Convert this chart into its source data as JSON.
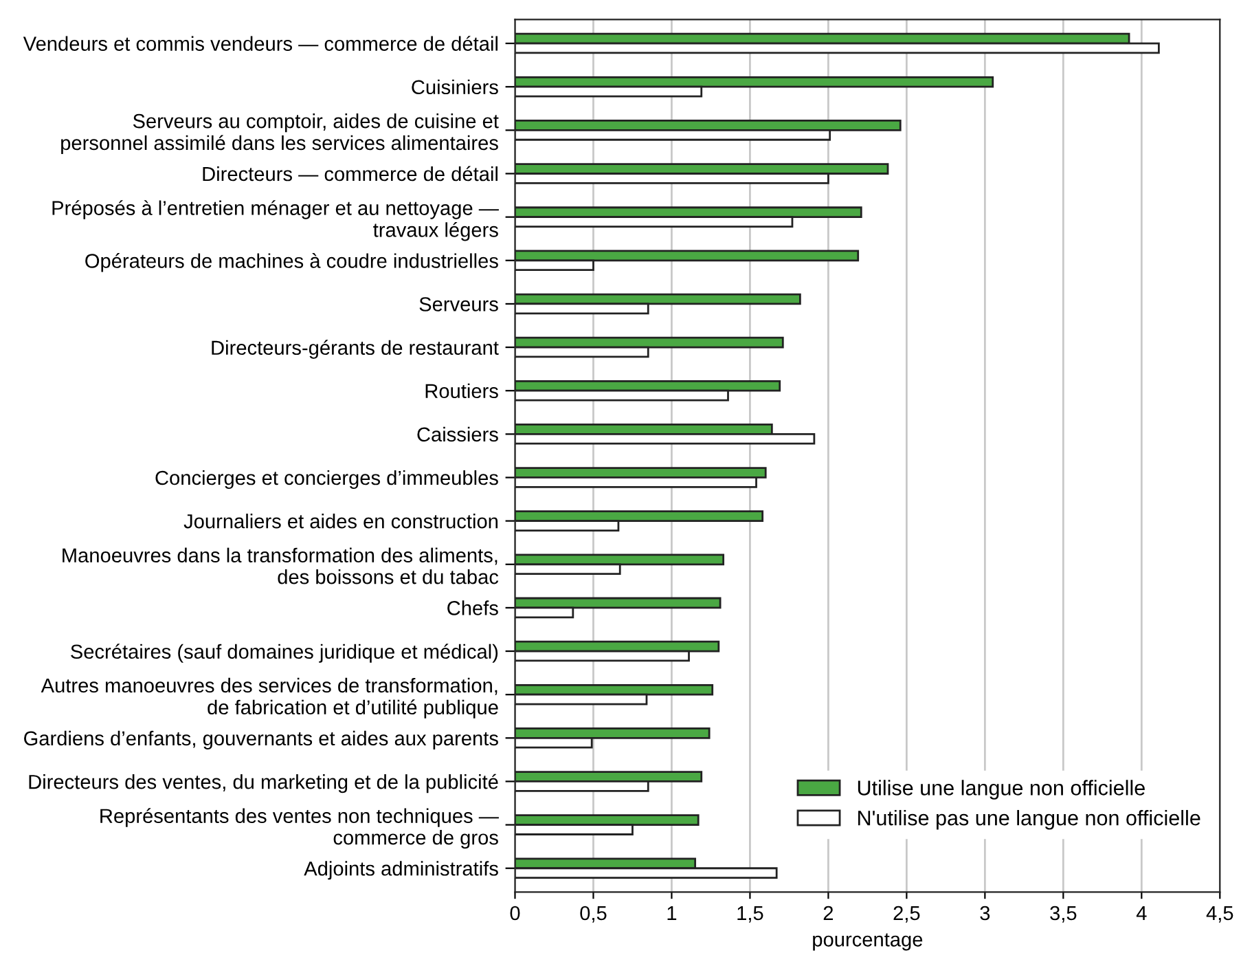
{
  "chart_data": {
    "type": "bar",
    "orientation": "horizontal",
    "xlabel": "pourcentage",
    "categories": [
      "Vendeurs et commis vendeurs — commerce de détail",
      "Cuisiniers",
      "Serveurs au comptoir, aides de cuisine et\npersonnel assimilé dans les services alimentaires",
      "Directeurs — commerce de détail",
      "Préposés à l’entretien ménager et au nettoyage —\ntravaux légers",
      "Opérateurs de machines à coudre industrielles",
      "Serveurs",
      "Directeurs-gérants de restaurant",
      "Routiers",
      "Caissiers",
      "Concierges et concierges d’immeubles",
      "Journaliers et aides en construction",
      "Manoeuvres dans la transformation des aliments,\ndes boissons et du tabac",
      "Chefs",
      "Secrétaires (sauf domaines juridique et médical)",
      "Autres manoeuvres des services de transformation,\nde fabrication et d’utilité publique",
      "Gardiens d’enfants, gouvernants et aides aux parents",
      "Directeurs des ventes, du marketing et de la publicité",
      "Représentants des ventes non techniques —\ncommerce de gros",
      "Adjoints administratifs"
    ],
    "series": [
      {
        "name": "Utilise une langue non officielle",
        "color": "#4aa843",
        "values": [
          3.92,
          3.05,
          2.46,
          2.38,
          2.21,
          2.19,
          1.82,
          1.71,
          1.69,
          1.64,
          1.6,
          1.58,
          1.33,
          1.31,
          1.3,
          1.26,
          1.24,
          1.19,
          1.17,
          1.15
        ]
      },
      {
        "name": "N'utilise pas une langue non officielle",
        "color": "#ffffff",
        "values": [
          4.11,
          1.19,
          2.01,
          2.0,
          1.77,
          0.5,
          0.85,
          0.85,
          1.36,
          1.91,
          1.54,
          0.66,
          0.67,
          0.37,
          1.11,
          0.84,
          0.49,
          0.85,
          0.75,
          1.67
        ]
      }
    ],
    "xlim": [
      0,
      4.5
    ],
    "xticks": [
      0,
      {
        "value": 0.5,
        "label": "0,5"
      },
      1,
      {
        "value": 1.5,
        "label": "1,5"
      },
      2,
      {
        "value": 2.5,
        "label": "2,5"
      },
      3,
      {
        "value": 3.5,
        "label": "3,5"
      },
      4,
      {
        "value": 4.5,
        "label": "4,5"
      }
    ],
    "grid": "x",
    "legend": "bottom right"
  }
}
